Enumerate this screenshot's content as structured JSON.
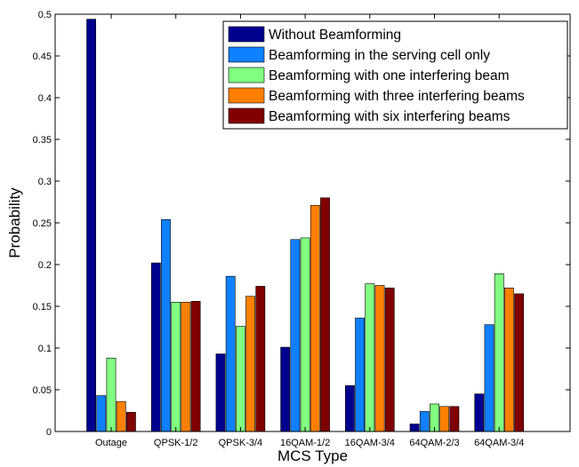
{
  "chart_data": {
    "type": "bar",
    "xlabel": "MCS Type",
    "ylabel": "Probability",
    "ylim": [
      0,
      0.5
    ],
    "yticks": [
      0,
      0.05,
      0.1,
      0.15,
      0.2,
      0.25,
      0.3,
      0.35,
      0.4,
      0.45,
      0.5
    ],
    "ytick_labels": [
      "0",
      "0.05",
      "0.1",
      "0.15",
      "0.2",
      "0.25",
      "0.3",
      "0.35",
      "0.4",
      "0.45",
      "0.5"
    ],
    "categories": [
      "Outage",
      "QPSK-1/2",
      "QPSK-3/4",
      "16QAM-1/2",
      "16QAM-3/4",
      "64QAM-2/3",
      "64QAM-3/4"
    ],
    "grid": false,
    "legend_position": "top-right",
    "series": [
      {
        "name": "Without Beamforming",
        "color": "#00008f",
        "values": [
          0.494,
          0.202,
          0.093,
          0.101,
          0.055,
          0.009,
          0.045
        ]
      },
      {
        "name": "Beamforming in the serving cell only",
        "color": "#0f80ff",
        "values": [
          0.043,
          0.254,
          0.186,
          0.23,
          0.136,
          0.024,
          0.128
        ]
      },
      {
        "name": "Beamforming with one interfering beam",
        "color": "#80ff80",
        "values": [
          0.088,
          0.155,
          0.126,
          0.232,
          0.177,
          0.033,
          0.189
        ]
      },
      {
        "name": "Beamforming with three interfering beams",
        "color": "#ff8000",
        "values": [
          0.036,
          0.155,
          0.162,
          0.271,
          0.175,
          0.03,
          0.172
        ]
      },
      {
        "name": "Beamforming with six interfering beams",
        "color": "#800000",
        "values": [
          0.023,
          0.156,
          0.174,
          0.28,
          0.172,
          0.03,
          0.165
        ]
      }
    ]
  }
}
